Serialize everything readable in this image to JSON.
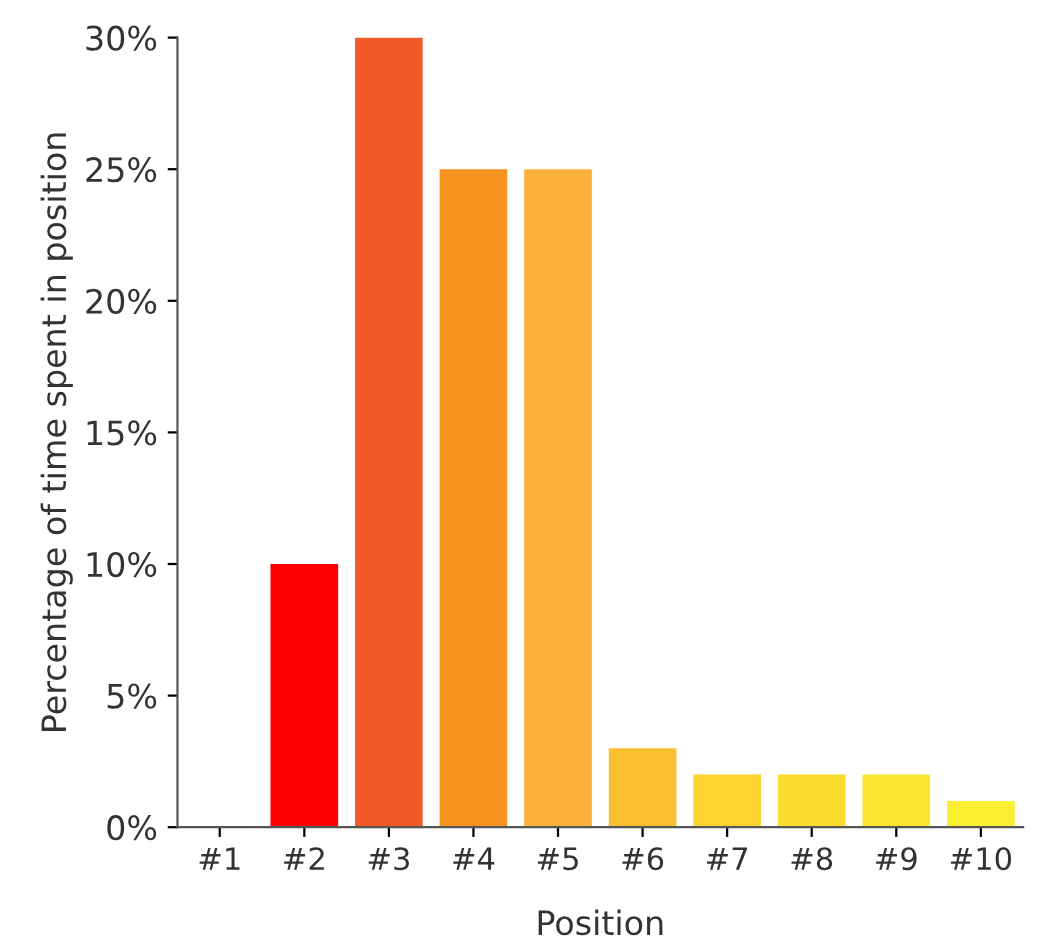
{
  "chart_data": {
    "type": "bar",
    "xlabel": "Position",
    "ylabel": "Percentage of time spent in position",
    "categories": [
      "#1",
      "#2",
      "#3",
      "#4",
      "#5",
      "#6",
      "#7",
      "#8",
      "#9",
      "#10"
    ],
    "values": [
      0,
      10,
      30,
      25,
      25,
      3,
      2,
      2,
      2,
      1
    ],
    "colors": [
      "#ff0000",
      "#ff0000",
      "#f05a28",
      "#f7931e",
      "#fbb03b",
      "#fbbf2f",
      "#fcd32f",
      "#fcdb2f",
      "#fce52f",
      "#fcee30"
    ],
    "ylim": [
      0,
      30
    ],
    "yticks": [
      {
        "value": 0,
        "label": "0%"
      },
      {
        "value": 5,
        "label": "5%"
      },
      {
        "value": 10,
        "label": "10%"
      },
      {
        "value": 15,
        "label": "15%"
      },
      {
        "value": 20,
        "label": "20%"
      },
      {
        "value": 25,
        "label": "25%"
      },
      {
        "value": 30,
        "label": "30%"
      }
    ],
    "grid": false
  }
}
